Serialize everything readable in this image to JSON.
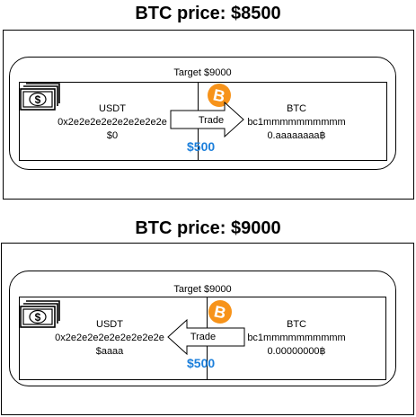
{
  "scenario1": {
    "title": "BTC price: $8500",
    "target": "Target $9000",
    "usdt": {
      "name": "USDT",
      "address": "0x2e2e2e2e2e2e2e2e2e",
      "balance": "$0"
    },
    "btc": {
      "name": "BTC",
      "address": "bc1mmmmmmmmmm",
      "balance": "0.aaaaaaaa฿"
    },
    "trade_label": "Trade",
    "trade_direction": "right",
    "trade_amount": "$500"
  },
  "scenario2": {
    "title": "BTC price: $9000",
    "target": "Target $9000",
    "usdt": {
      "name": "USDT",
      "address": "0x2e2e2e2e2e2e2e2e2e",
      "balance": "$aaaa"
    },
    "btc": {
      "name": "BTC",
      "address": "bc1mmmmmmmmmm",
      "balance": "0.00000000฿"
    },
    "trade_label": "Trade",
    "trade_direction": "left",
    "trade_amount": "$500"
  },
  "colors": {
    "bitcoin_orange": "#f7931a",
    "amount_blue": "#1c7fdb"
  },
  "icons": {
    "usdt": "dollar-bill-icon",
    "btc": "bitcoin-icon"
  }
}
